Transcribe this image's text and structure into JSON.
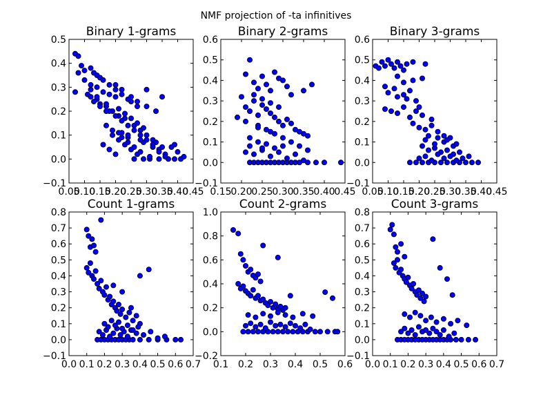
{
  "figure": {
    "suptitle": "NMF projection of -ta infinitives",
    "colors": {
      "marker_fill": "#0000ff",
      "marker_edge": "#000000"
    }
  },
  "chart_data": [
    {
      "type": "scatter",
      "title": "Binary 1-grams",
      "xlabel": "",
      "ylabel": "",
      "xlim": [
        0.05,
        0.45
      ],
      "ylim": [
        -0.1,
        0.5
      ],
      "xticks": [
        0.05,
        0.1,
        0.15,
        0.2,
        0.25,
        0.3,
        0.35,
        0.4,
        0.45
      ],
      "xtick_labels": [
        "0.05",
        "0.10",
        "0.15",
        "0.20",
        "0.25",
        "0.30",
        "0.35",
        "0.40",
        "0.45"
      ],
      "yticks": [
        -0.1,
        0.0,
        0.1,
        0.2,
        0.3,
        0.4,
        0.5
      ],
      "ytick_labels": [
        "−0.1",
        "0.0",
        "0.1",
        "0.2",
        "0.3",
        "0.4",
        "0.5"
      ],
      "x": [
        0.07,
        0.08,
        0.09,
        0.07,
        0.1,
        0.12,
        0.13,
        0.14,
        0.15,
        0.16,
        0.18,
        0.2,
        0.22,
        0.1,
        0.12,
        0.14,
        0.16,
        0.18,
        0.2,
        0.24,
        0.25,
        0.27,
        0.3,
        0.08,
        0.11,
        0.14,
        0.17,
        0.19,
        0.21,
        0.23,
        0.26,
        0.28,
        0.3,
        0.32,
        0.33,
        0.35,
        0.38,
        0.4,
        0.42,
        0.12,
        0.15,
        0.18,
        0.2,
        0.22,
        0.24,
        0.26,
        0.28,
        0.3,
        0.32,
        0.34,
        0.36,
        0.19,
        0.21,
        0.23,
        0.25,
        0.27,
        0.29,
        0.31,
        0.26,
        0.17,
        0.19,
        0.22,
        0.24,
        0.26,
        0.28,
        0.31,
        0.34,
        0.37,
        0.39,
        0.41,
        0.21,
        0.23,
        0.25,
        0.27,
        0.29,
        0.16,
        0.18,
        0.2,
        0.13,
        0.15,
        0.17,
        0.29,
        0.32,
        0.34,
        0.36,
        0.22,
        0.24,
        0.2,
        0.22,
        0.25,
        0.27,
        0.3,
        0.33,
        0.35,
        0.39,
        0.12,
        0.14,
        0.17,
        0.21,
        0.24,
        0.28
      ],
      "y": [
        0.44,
        0.43,
        0.39,
        0.28,
        0.37,
        0.38,
        0.36,
        0.35,
        0.34,
        0.33,
        0.31,
        0.29,
        0.27,
        0.33,
        0.31,
        0.3,
        0.28,
        0.27,
        0.26,
        0.25,
        0.24,
        0.22,
        0.29,
        0.36,
        0.27,
        0.25,
        0.22,
        0.2,
        0.18,
        0.17,
        0.14,
        0.12,
        0.1,
        0.08,
        0.07,
        0.05,
        0.05,
        0.03,
        0.01,
        0.26,
        0.23,
        0.2,
        0.18,
        0.16,
        0.14,
        0.12,
        0.1,
        0.08,
        0.06,
        0.04,
        0.02,
        0.1,
        0.08,
        0.06,
        0.04,
        0.02,
        0.0,
        0.0,
        0.0,
        0.14,
        0.12,
        0.09,
        0.07,
        0.05,
        0.03,
        0.01,
        0.0,
        0.0,
        0.0,
        0.0,
        0.21,
        0.19,
        0.17,
        0.15,
        0.13,
        0.06,
        0.04,
        0.02,
        0.24,
        0.22,
        0.2,
        0.07,
        0.05,
        0.03,
        0.01,
        0.11,
        0.09,
        0.31,
        0.29,
        0.26,
        0.24,
        0.22,
        0.2,
        0.26,
        0.06,
        0.29,
        0.26,
        0.23,
        0.11,
        0.1,
        0.08
      ]
    },
    {
      "type": "scatter",
      "title": "Binary 2-grams",
      "xlabel": "",
      "ylabel": "",
      "xlim": [
        0.15,
        0.45
      ],
      "ylim": [
        -0.1,
        0.6
      ],
      "xticks": [
        0.15,
        0.2,
        0.25,
        0.3,
        0.35,
        0.4,
        0.45
      ],
      "xtick_labels": [
        "0.15",
        "0.20",
        "0.25",
        "0.30",
        "0.35",
        "0.40",
        "0.45"
      ],
      "yticks": [
        -0.1,
        0.0,
        0.1,
        0.2,
        0.3,
        0.4,
        0.5,
        0.6
      ],
      "ytick_labels": [
        "−0.1",
        "0.0",
        "0.1",
        "0.2",
        "0.3",
        "0.4",
        "0.5",
        "0.6"
      ],
      "x": [
        0.21,
        0.22,
        0.23,
        0.24,
        0.25,
        0.26,
        0.27,
        0.28,
        0.29,
        0.3,
        0.31,
        0.32,
        0.2,
        0.21,
        0.22,
        0.23,
        0.24,
        0.25,
        0.26,
        0.27,
        0.28,
        0.29,
        0.3,
        0.31,
        0.32,
        0.33,
        0.34,
        0.35,
        0.36,
        0.22,
        0.23,
        0.24,
        0.25,
        0.26,
        0.27,
        0.28,
        0.29,
        0.3,
        0.31,
        0.32,
        0.33,
        0.34,
        0.36,
        0.38,
        0.4,
        0.44,
        0.21,
        0.23,
        0.25,
        0.27,
        0.29,
        0.31,
        0.33,
        0.35,
        0.22,
        0.24,
        0.26,
        0.28,
        0.3,
        0.24,
        0.26,
        0.28,
        0.3,
        0.32,
        0.34,
        0.36,
        0.21,
        0.24,
        0.27,
        0.19,
        0.22,
        0.25,
        0.35,
        0.37,
        0.23,
        0.25,
        0.27,
        0.29
      ],
      "y": [
        0.43,
        0.5,
        0.39,
        0.36,
        0.42,
        0.38,
        0.35,
        0.44,
        0.41,
        0.4,
        0.37,
        0.33,
        0.32,
        0.27,
        0.25,
        0.3,
        0.23,
        0.28,
        0.26,
        0.24,
        0.22,
        0.2,
        0.18,
        0.21,
        0.19,
        0.16,
        0.15,
        0.14,
        0.13,
        0.0,
        0.0,
        0.0,
        0.0,
        0.0,
        0.0,
        0.0,
        0.0,
        0.0,
        0.0,
        0.0,
        0.0,
        0.0,
        0.0,
        0.0,
        0.0,
        0.0,
        0.05,
        0.04,
        0.06,
        0.03,
        0.05,
        0.02,
        0.04,
        0.01,
        0.12,
        0.1,
        0.09,
        0.07,
        0.08,
        0.18,
        0.16,
        0.14,
        0.12,
        0.1,
        0.08,
        0.06,
        0.2,
        0.17,
        0.15,
        0.22,
        0.08,
        0.07,
        0.35,
        0.38,
        0.33,
        0.31,
        0.29,
        0.27
      ]
    },
    {
      "type": "scatter",
      "title": "Binary 3-grams",
      "xlabel": "",
      "ylabel": "",
      "xlim": [
        0.05,
        0.45
      ],
      "ylim": [
        -0.1,
        0.6
      ],
      "xticks": [
        0.05,
        0.1,
        0.15,
        0.2,
        0.25,
        0.3,
        0.35,
        0.4,
        0.45
      ],
      "xtick_labels": [
        "0.05",
        "0.10",
        "0.15",
        "0.20",
        "0.25",
        "0.30",
        "0.35",
        "0.40",
        "0.45"
      ],
      "yticks": [
        -0.1,
        0.0,
        0.1,
        0.2,
        0.3,
        0.4,
        0.5,
        0.6
      ],
      "ytick_labels": [
        "−0.1",
        "0.0",
        "0.1",
        "0.2",
        "0.3",
        "0.4",
        "0.5",
        "0.6"
      ],
      "x": [
        0.06,
        0.07,
        0.08,
        0.09,
        0.1,
        0.11,
        0.12,
        0.13,
        0.14,
        0.15,
        0.16,
        0.18,
        0.22,
        0.09,
        0.1,
        0.12,
        0.13,
        0.15,
        0.16,
        0.17,
        0.19,
        0.09,
        0.11,
        0.13,
        0.15,
        0.17,
        0.19,
        0.21,
        0.18,
        0.2,
        0.22,
        0.24,
        0.26,
        0.28,
        0.3,
        0.21,
        0.23,
        0.25,
        0.27,
        0.29,
        0.31,
        0.33,
        0.36,
        0.17,
        0.19,
        0.21,
        0.23,
        0.25,
        0.27,
        0.29,
        0.31,
        0.33,
        0.35,
        0.37,
        0.39,
        0.2,
        0.22,
        0.24,
        0.26,
        0.28,
        0.3,
        0.32,
        0.34,
        0.22,
        0.25,
        0.28,
        0.31,
        0.23,
        0.26,
        0.29,
        0.32,
        0.2,
        0.24,
        0.13,
        0.15,
        0.18,
        0.21
      ],
      "y": [
        0.47,
        0.46,
        0.49,
        0.47,
        0.5,
        0.48,
        0.46,
        0.49,
        0.47,
        0.45,
        0.48,
        0.49,
        0.48,
        0.37,
        0.34,
        0.36,
        0.32,
        0.33,
        0.31,
        0.35,
        0.3,
        0.26,
        0.25,
        0.24,
        0.27,
        0.22,
        0.25,
        0.23,
        0.19,
        0.17,
        0.16,
        0.18,
        0.15,
        0.13,
        0.12,
        0.08,
        0.06,
        0.07,
        0.05,
        0.06,
        0.04,
        0.05,
        0.03,
        0.0,
        0.0,
        0.0,
        0.0,
        0.0,
        0.0,
        0.0,
        0.0,
        0.0,
        0.0,
        0.0,
        0.0,
        0.02,
        0.03,
        0.01,
        0.04,
        0.02,
        0.03,
        0.01,
        0.02,
        0.11,
        0.09,
        0.1,
        0.08,
        0.13,
        0.12,
        0.11,
        0.09,
        0.27,
        0.21,
        0.42,
        0.39,
        0.4,
        0.41
      ]
    },
    {
      "type": "scatter",
      "title": "Count 1-grams",
      "xlabel": "",
      "ylabel": "",
      "xlim": [
        0.0,
        0.7
      ],
      "ylim": [
        -0.1,
        0.8
      ],
      "xticks": [
        0.0,
        0.1,
        0.2,
        0.3,
        0.4,
        0.5,
        0.6,
        0.7
      ],
      "xtick_labels": [
        "0.0",
        "0.1",
        "0.2",
        "0.3",
        "0.4",
        "0.5",
        "0.6",
        "0.7"
      ],
      "yticks": [
        -0.1,
        0.0,
        0.1,
        0.2,
        0.3,
        0.4,
        0.5,
        0.6,
        0.7,
        0.8
      ],
      "ytick_labels": [
        "−0.1",
        "0.0",
        "0.1",
        "0.2",
        "0.3",
        "0.4",
        "0.5",
        "0.6",
        "0.7",
        "0.8"
      ],
      "x": [
        0.1,
        0.11,
        0.12,
        0.13,
        0.14,
        0.15,
        0.18,
        0.1,
        0.11,
        0.12,
        0.13,
        0.14,
        0.15,
        0.16,
        0.17,
        0.18,
        0.19,
        0.2,
        0.21,
        0.22,
        0.23,
        0.24,
        0.25,
        0.26,
        0.27,
        0.28,
        0.29,
        0.3,
        0.32,
        0.34,
        0.36,
        0.38,
        0.4,
        0.16,
        0.18,
        0.2,
        0.22,
        0.24,
        0.26,
        0.28,
        0.3,
        0.32,
        0.34,
        0.36,
        0.4,
        0.45,
        0.5,
        0.55,
        0.6,
        0.63,
        0.17,
        0.19,
        0.21,
        0.23,
        0.25,
        0.27,
        0.29,
        0.31,
        0.33,
        0.35,
        0.38,
        0.42,
        0.46,
        0.5,
        0.54,
        0.2,
        0.22,
        0.24,
        0.26,
        0.28,
        0.3,
        0.33,
        0.36,
        0.39,
        0.25,
        0.3,
        0.35,
        0.4,
        0.45
      ],
      "y": [
        0.69,
        0.65,
        0.58,
        0.63,
        0.59,
        0.55,
        0.75,
        0.45,
        0.42,
        0.48,
        0.4,
        0.38,
        0.43,
        0.35,
        0.32,
        0.37,
        0.3,
        0.28,
        0.33,
        0.25,
        0.27,
        0.22,
        0.24,
        0.2,
        0.18,
        0.22,
        0.16,
        0.19,
        0.14,
        0.17,
        0.12,
        0.15,
        0.1,
        0.0,
        0.0,
        0.0,
        0.0,
        0.0,
        0.0,
        0.0,
        0.0,
        0.0,
        0.0,
        0.0,
        0.0,
        0.0,
        0.0,
        0.0,
        0.0,
        0.0,
        0.05,
        0.03,
        0.06,
        0.02,
        0.04,
        0.07,
        0.03,
        0.05,
        0.02,
        0.06,
        0.04,
        0.03,
        0.05,
        0.01,
        0.02,
        0.1,
        0.08,
        0.12,
        0.09,
        0.11,
        0.07,
        0.09,
        0.06,
        0.08,
        0.34,
        0.3,
        0.2,
        0.4,
        0.44
      ]
    },
    {
      "type": "scatter",
      "title": "Count 2-grams",
      "xlabel": "",
      "ylabel": "",
      "xlim": [
        0.1,
        0.6
      ],
      "ylim": [
        -0.2,
        1.0
      ],
      "xticks": [
        0.1,
        0.2,
        0.3,
        0.4,
        0.5,
        0.6
      ],
      "xtick_labels": [
        "0.1",
        "0.2",
        "0.3",
        "0.4",
        "0.5",
        "0.6"
      ],
      "yticks": [
        -0.2,
        0.0,
        0.2,
        0.4,
        0.6,
        0.8,
        1.0
      ],
      "ytick_labels": [
        "−0.2",
        "0.0",
        "0.2",
        "0.4",
        "0.6",
        "0.8",
        "1.0"
      ],
      "x": [
        0.15,
        0.17,
        0.18,
        0.19,
        0.2,
        0.21,
        0.22,
        0.23,
        0.24,
        0.25,
        0.26,
        0.27,
        0.17,
        0.18,
        0.19,
        0.2,
        0.21,
        0.22,
        0.23,
        0.24,
        0.25,
        0.26,
        0.27,
        0.28,
        0.29,
        0.3,
        0.31,
        0.32,
        0.33,
        0.34,
        0.35,
        0.36,
        0.19,
        0.21,
        0.23,
        0.25,
        0.27,
        0.29,
        0.31,
        0.33,
        0.35,
        0.37,
        0.39,
        0.41,
        0.43,
        0.45,
        0.48,
        0.5,
        0.53,
        0.56,
        0.57,
        0.2,
        0.22,
        0.24,
        0.26,
        0.28,
        0.3,
        0.32,
        0.34,
        0.36,
        0.38,
        0.4,
        0.42,
        0.44,
        0.46,
        0.21,
        0.24,
        0.27,
        0.3,
        0.33,
        0.36,
        0.39,
        0.43,
        0.47,
        0.52,
        0.55,
        0.33,
        0.38
      ],
      "y": [
        0.85,
        0.82,
        0.65,
        0.6,
        0.55,
        0.5,
        0.52,
        0.47,
        0.45,
        0.48,
        0.42,
        0.72,
        0.4,
        0.36,
        0.38,
        0.34,
        0.32,
        0.3,
        0.35,
        0.28,
        0.3,
        0.26,
        0.27,
        0.24,
        0.22,
        0.25,
        0.2,
        0.23,
        0.19,
        0.21,
        0.18,
        0.2,
        0.0,
        0.0,
        0.0,
        0.0,
        0.0,
        0.0,
        0.0,
        0.0,
        0.0,
        0.0,
        0.0,
        0.0,
        0.0,
        0.0,
        0.0,
        0.0,
        0.0,
        0.0,
        0.0,
        0.05,
        0.07,
        0.04,
        0.06,
        0.03,
        0.08,
        0.05,
        0.06,
        0.04,
        0.07,
        0.05,
        0.03,
        0.06,
        0.02,
        0.14,
        0.12,
        0.15,
        0.13,
        0.16,
        0.14,
        0.12,
        0.15,
        0.13,
        0.33,
        0.28,
        0.62,
        0.3
      ]
    },
    {
      "type": "scatter",
      "title": "Count 3-grams",
      "xlabel": "",
      "ylabel": "",
      "xlim": [
        0.0,
        0.7
      ],
      "ylim": [
        -0.1,
        0.8
      ],
      "xticks": [
        0.0,
        0.1,
        0.2,
        0.3,
        0.4,
        0.5,
        0.6,
        0.7
      ],
      "xtick_labels": [
        "0.0",
        "0.1",
        "0.2",
        "0.3",
        "0.4",
        "0.5",
        "0.6",
        "0.7"
      ],
      "yticks": [
        -0.1,
        0.0,
        0.1,
        0.2,
        0.3,
        0.4,
        0.5,
        0.6,
        0.7,
        0.8
      ],
      "ytick_labels": [
        "−0.1",
        "0.0",
        "0.1",
        "0.2",
        "0.3",
        "0.4",
        "0.5",
        "0.6",
        "0.7",
        "0.8"
      ],
      "x": [
        0.1,
        0.11,
        0.12,
        0.13,
        0.14,
        0.16,
        0.18,
        0.12,
        0.13,
        0.14,
        0.15,
        0.16,
        0.17,
        0.18,
        0.19,
        0.2,
        0.21,
        0.22,
        0.23,
        0.24,
        0.25,
        0.26,
        0.27,
        0.28,
        0.29,
        0.3,
        0.14,
        0.16,
        0.18,
        0.2,
        0.22,
        0.24,
        0.26,
        0.28,
        0.3,
        0.32,
        0.34,
        0.36,
        0.38,
        0.4,
        0.42,
        0.44,
        0.47,
        0.5,
        0.54,
        0.58,
        0.16,
        0.18,
        0.2,
        0.22,
        0.24,
        0.26,
        0.28,
        0.3,
        0.32,
        0.34,
        0.36,
        0.38,
        0.4,
        0.43,
        0.46,
        0.18,
        0.21,
        0.24,
        0.27,
        0.3,
        0.33,
        0.36,
        0.4,
        0.44,
        0.48,
        0.53,
        0.34,
        0.38,
        0.42,
        0.45
      ],
      "y": [
        0.69,
        0.72,
        0.66,
        0.58,
        0.55,
        0.6,
        0.52,
        0.48,
        0.45,
        0.5,
        0.42,
        0.44,
        0.4,
        0.38,
        0.36,
        0.39,
        0.34,
        0.32,
        0.35,
        0.3,
        0.28,
        0.31,
        0.26,
        0.29,
        0.24,
        0.27,
        0.0,
        0.0,
        0.0,
        0.0,
        0.0,
        0.0,
        0.0,
        0.0,
        0.0,
        0.0,
        0.0,
        0.0,
        0.0,
        0.0,
        0.0,
        0.0,
        0.0,
        0.0,
        0.0,
        0.0,
        0.05,
        0.07,
        0.04,
        0.06,
        0.03,
        0.08,
        0.05,
        0.06,
        0.04,
        0.07,
        0.05,
        0.03,
        0.06,
        0.02,
        0.04,
        0.16,
        0.14,
        0.17,
        0.15,
        0.12,
        0.14,
        0.11,
        0.13,
        0.1,
        0.12,
        0.09,
        0.63,
        0.45,
        0.38,
        0.28
      ]
    }
  ]
}
